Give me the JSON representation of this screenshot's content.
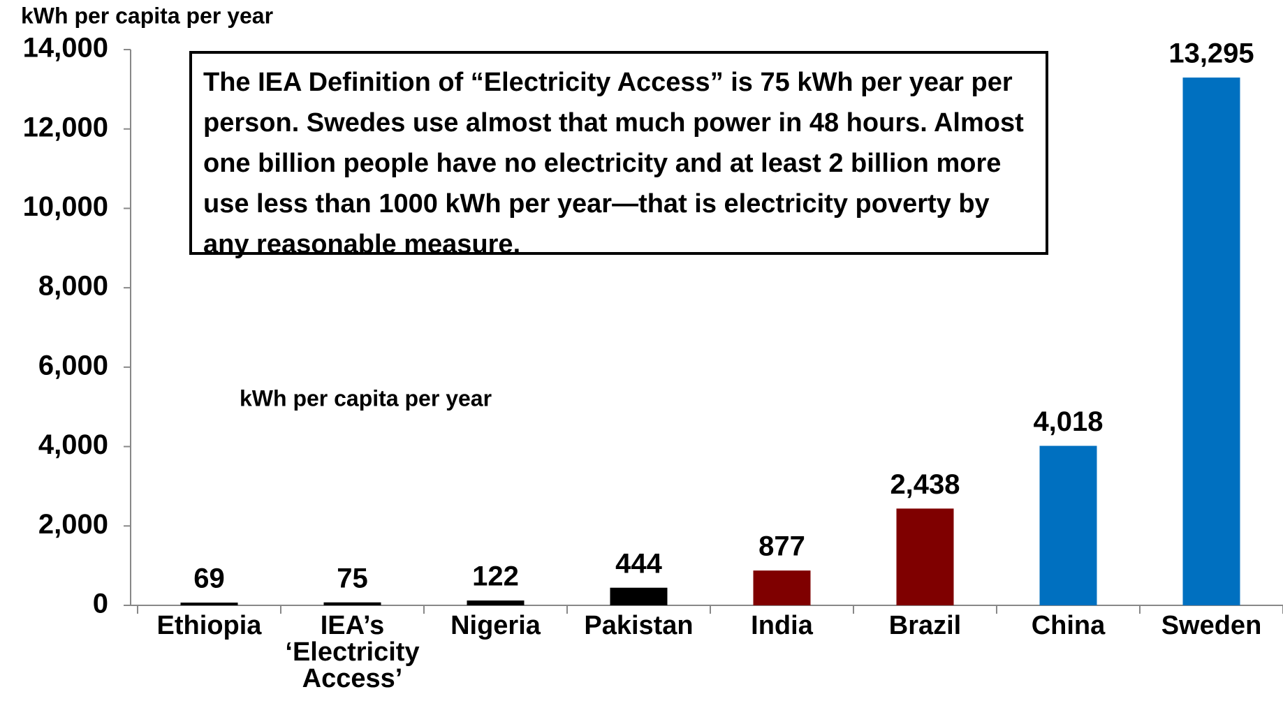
{
  "chart_data": {
    "type": "bar",
    "title": "kWh per capita per year",
    "annotation": "The IEA Definition of “Electricity Access” is 75 kWh per year per person. Swedes use almost that much power in 48 hours. Almost one billion people have no electricity and at least 2 billion more use less than 1000 kWh per year—that is electricity poverty by any reasonable measure.",
    "inner_label": "kWh per capita per year",
    "categories": [
      "Ethiopia",
      "IEA’s ‘Electricity Access’",
      "Nigeria",
      "Pakistan",
      "India",
      "Brazil",
      "China",
      "Sweden"
    ],
    "values": [
      69,
      75,
      122,
      444,
      877,
      2438,
      4018,
      13295
    ],
    "value_labels": [
      "69",
      "75",
      "122",
      "444",
      "877",
      "2,438",
      "4,018",
      "13,295"
    ],
    "colors": [
      "#000000",
      "#000000",
      "#000000",
      "#000000",
      "#7f0000",
      "#7f0000",
      "#0070c0",
      "#0070c0"
    ],
    "ylim": [
      0,
      14000
    ],
    "yticks": [
      0,
      {
        "value": 2000,
        "label": "2,000"
      },
      {
        "value": 4000,
        "label": "4,000"
      },
      {
        "value": 6000,
        "label": "6,000"
      },
      {
        "value": 8000,
        "label": "8,000"
      },
      {
        "value": 10000,
        "label": "10,000"
      },
      {
        "value": 12000,
        "label": "12,000"
      },
      {
        "value": 14000,
        "label": "14,000"
      }
    ],
    "grid": false
  }
}
